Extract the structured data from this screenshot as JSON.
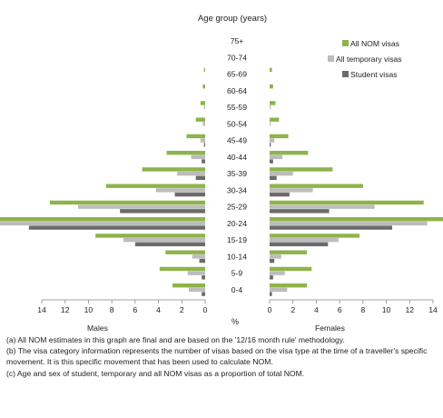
{
  "chart_data": {
    "type": "bar",
    "orientation": "horizontal",
    "layout": "population-pyramid",
    "title": "Age group (years)",
    "xlabel": "%",
    "panels": [
      "Males",
      "Females"
    ],
    "xlim": [
      0,
      14
    ],
    "xticks": [
      0,
      2,
      4,
      6,
      8,
      10,
      12,
      14
    ],
    "grid": false,
    "legend_position": "top-right",
    "categories": [
      "75+",
      "70-74",
      "65-69",
      "60-64",
      "55-59",
      "50-54",
      "45-49",
      "40-44",
      "35-39",
      "30-34",
      "25-29",
      "20-24",
      "15-19",
      "10-14",
      "5-9",
      "0-4"
    ],
    "series": [
      {
        "name": "All NOM visas",
        "color": "#8db44a",
        "males": [
          0.0,
          0.0,
          0.1,
          0.2,
          0.4,
          0.8,
          1.6,
          3.3,
          5.4,
          8.5,
          13.3,
          19.5,
          9.4,
          3.4,
          3.9,
          2.8
        ],
        "females": [
          0.0,
          0.0,
          0.2,
          0.3,
          0.5,
          0.8,
          1.6,
          3.3,
          5.4,
          8.0,
          13.2,
          15.9,
          7.7,
          3.2,
          3.6,
          3.2
        ]
      },
      {
        "name": "All temporary visas",
        "color": "#bcbcbc",
        "males": [
          0.0,
          0.0,
          0.0,
          0.0,
          0.1,
          0.2,
          0.4,
          1.2,
          2.4,
          4.2,
          10.9,
          18.2,
          7.0,
          1.1,
          1.5,
          1.4
        ],
        "females": [
          0.0,
          0.0,
          0.0,
          0.0,
          0.1,
          0.1,
          0.4,
          1.1,
          2.0,
          3.7,
          9.0,
          13.5,
          5.9,
          1.0,
          1.3,
          1.5
        ]
      },
      {
        "name": "Student visas",
        "color": "#6b6b6b",
        "males": [
          0.0,
          0.0,
          0.0,
          0.0,
          0.0,
          0.0,
          0.1,
          0.3,
          0.8,
          2.6,
          7.3,
          15.1,
          6.0,
          0.5,
          0.3,
          0.3
        ],
        "females": [
          0.0,
          0.0,
          0.0,
          0.0,
          0.0,
          0.0,
          0.1,
          0.3,
          0.6,
          1.7,
          5.1,
          10.5,
          5.0,
          0.4,
          0.3,
          0.2
        ]
      }
    ]
  },
  "notes": [
    "(a) All NOM estimates in this graph are final and are based on the '12/16 month rule' methodology.",
    "(b) The visa category information represents the number of visas based on the visa type at the time of a traveller's specific movement. It is this specific movement that has been used to calculate NOM.",
    "(c) Age and sex of student, temporary and all NOM visas as a proportion of total NOM."
  ]
}
